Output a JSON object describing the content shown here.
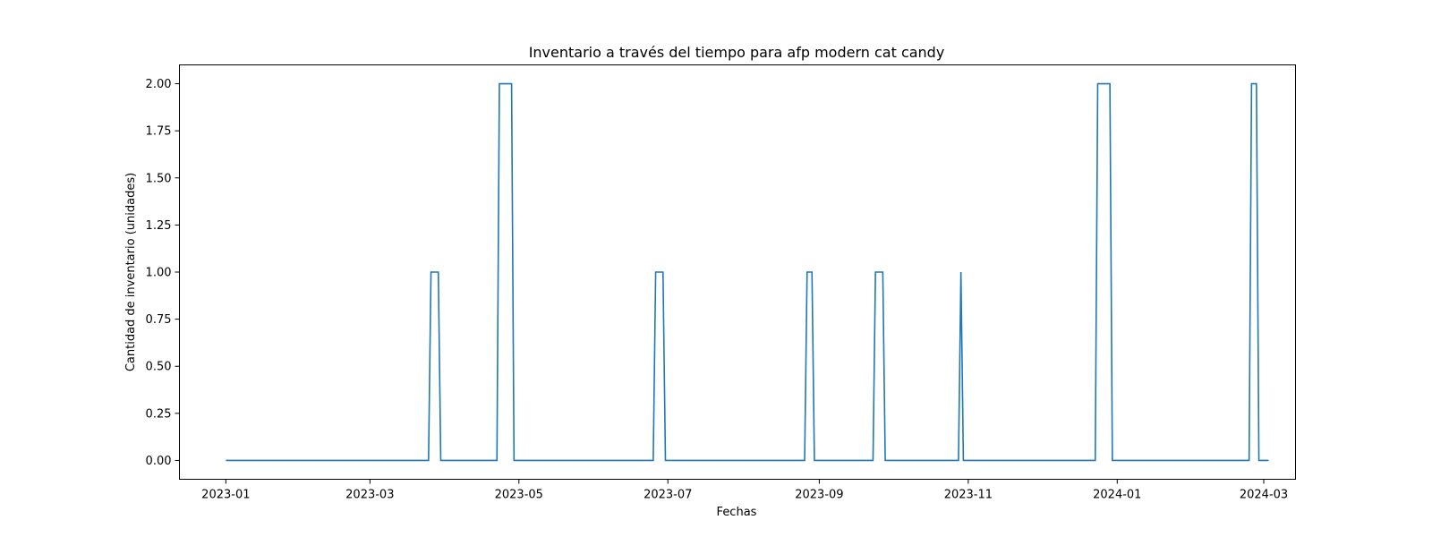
{
  "chart_data": {
    "type": "line",
    "title": "Inventario a través del tiempo para afp modern cat candy",
    "xlabel": "Fechas",
    "ylabel": "Cantidad de inventario (unidades)",
    "x_type": "date",
    "xlim": [
      "2022-12-13",
      "2024-03-14"
    ],
    "ylim": [
      -0.1,
      2.1
    ],
    "grid": false,
    "legend": "none",
    "x_ticks": [
      {
        "date": "2023-01-01",
        "label": "2023-01"
      },
      {
        "date": "2023-03-01",
        "label": "2023-03"
      },
      {
        "date": "2023-05-01",
        "label": "2023-05"
      },
      {
        "date": "2023-07-01",
        "label": "2023-07"
      },
      {
        "date": "2023-09-01",
        "label": "2023-09"
      },
      {
        "date": "2023-11-01",
        "label": "2023-11"
      },
      {
        "date": "2024-01-01",
        "label": "2024-01"
      },
      {
        "date": "2024-03-01",
        "label": "2024-03"
      }
    ],
    "y_ticks": [
      {
        "value": 0.0,
        "label": "0.00"
      },
      {
        "value": 0.25,
        "label": "0.25"
      },
      {
        "value": 0.5,
        "label": "0.50"
      },
      {
        "value": 0.75,
        "label": "0.75"
      },
      {
        "value": 1.0,
        "label": "1.00"
      },
      {
        "value": 1.25,
        "label": "1.25"
      },
      {
        "value": 1.5,
        "label": "1.50"
      },
      {
        "value": 1.75,
        "label": "1.75"
      },
      {
        "value": 2.0,
        "label": "2.00"
      }
    ],
    "series": [
      {
        "color": "#1f77b4",
        "points": [
          {
            "x": "2023-01-01",
            "y": 0
          },
          {
            "x": "2023-03-25",
            "y": 0
          },
          {
            "x": "2023-03-26",
            "y": 1
          },
          {
            "x": "2023-03-29",
            "y": 1
          },
          {
            "x": "2023-03-30",
            "y": 0
          },
          {
            "x": "2023-04-22",
            "y": 0
          },
          {
            "x": "2023-04-23",
            "y": 2
          },
          {
            "x": "2023-04-28",
            "y": 2
          },
          {
            "x": "2023-04-29",
            "y": 0
          },
          {
            "x": "2023-06-25",
            "y": 0
          },
          {
            "x": "2023-06-26",
            "y": 1
          },
          {
            "x": "2023-06-29",
            "y": 1
          },
          {
            "x": "2023-06-30",
            "y": 0
          },
          {
            "x": "2023-08-26",
            "y": 0
          },
          {
            "x": "2023-08-27",
            "y": 1
          },
          {
            "x": "2023-08-29",
            "y": 1
          },
          {
            "x": "2023-08-30",
            "y": 0
          },
          {
            "x": "2023-09-23",
            "y": 0
          },
          {
            "x": "2023-09-24",
            "y": 1
          },
          {
            "x": "2023-09-27",
            "y": 1
          },
          {
            "x": "2023-09-28",
            "y": 0
          },
          {
            "x": "2023-10-28",
            "y": 0
          },
          {
            "x": "2023-10-29",
            "y": 1
          },
          {
            "x": "2023-10-30",
            "y": 0
          },
          {
            "x": "2023-12-23",
            "y": 0
          },
          {
            "x": "2023-12-24",
            "y": 2
          },
          {
            "x": "2023-12-29",
            "y": 2
          },
          {
            "x": "2023-12-30",
            "y": 0
          },
          {
            "x": "2024-02-24",
            "y": 0
          },
          {
            "x": "2024-02-25",
            "y": 2
          },
          {
            "x": "2024-02-27",
            "y": 2
          },
          {
            "x": "2024-02-28",
            "y": 0
          },
          {
            "x": "2024-03-03",
            "y": 0
          }
        ]
      }
    ]
  }
}
